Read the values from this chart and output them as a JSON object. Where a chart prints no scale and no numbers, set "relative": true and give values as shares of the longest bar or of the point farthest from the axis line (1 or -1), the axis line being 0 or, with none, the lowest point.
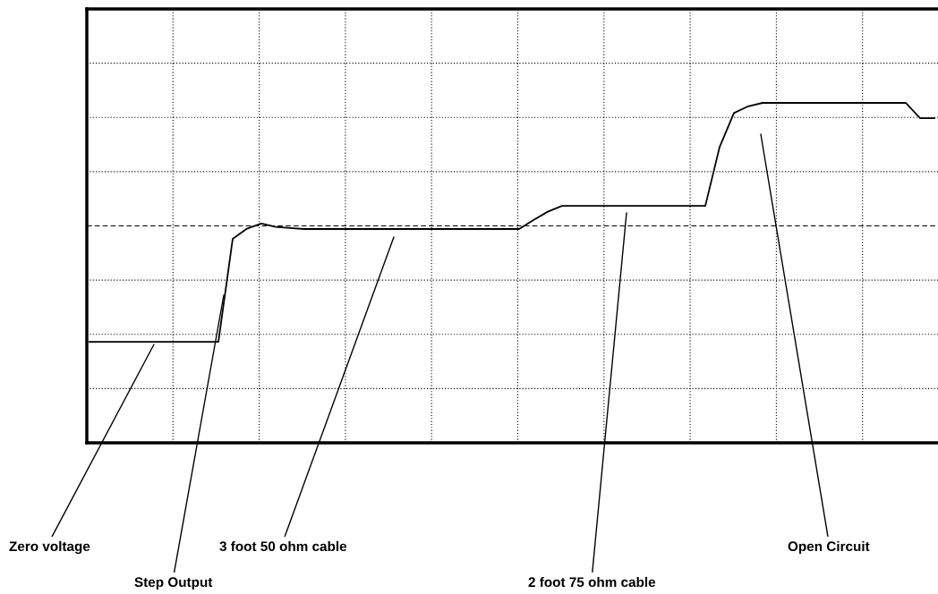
{
  "chart_data": {
    "type": "line",
    "relative": true,
    "grid": true,
    "tick_labels": false,
    "marker": "none",
    "line_style": "solid",
    "categories": [
      null,
      null,
      null,
      null,
      null,
      null,
      null,
      null,
      null,
      null,
      null,
      null,
      null,
      null,
      null,
      null,
      null,
      null,
      null,
      null,
      null,
      null,
      null,
      null,
      null,
      null,
      null,
      null,
      null,
      null,
      null,
      null,
      null,
      null,
      null,
      null,
      null,
      null,
      null,
      null,
      null,
      null,
      null,
      null,
      null,
      null,
      null,
      null,
      null,
      null,
      null,
      null,
      null,
      null,
      null,
      null,
      null,
      null,
      null,
      null
    ],
    "series": [
      {
        "color": "#000000",
        "values": [
          0.297,
          0.297,
          0.297,
          0.297,
          0.297,
          0.297,
          0.297,
          0.297,
          0.297,
          0.297,
          0.6,
          0.63,
          0.645,
          0.635,
          0.632,
          0.629,
          0.629,
          0.629,
          0.629,
          0.629,
          0.629,
          0.629,
          0.629,
          0.629,
          0.629,
          0.629,
          0.629,
          0.629,
          0.629,
          0.629,
          0.629,
          0.655,
          0.68,
          0.697,
          0.697,
          0.697,
          0.697,
          0.697,
          0.697,
          0.697,
          0.697,
          0.697,
          0.697,
          0.697,
          0.87,
          0.97,
          0.99,
          1.0,
          1.0,
          1.0,
          1.0,
          1.0,
          1.0,
          1.0,
          1.0,
          1.0,
          1.0,
          1.0,
          0.955,
          0.955
        ]
      }
    ],
    "annotations": [
      "Zero voltage",
      "Step Output",
      "3 foot 50 ohm cable",
      "2 foot 75 ohm cable",
      "Open Circuit"
    ]
  }
}
